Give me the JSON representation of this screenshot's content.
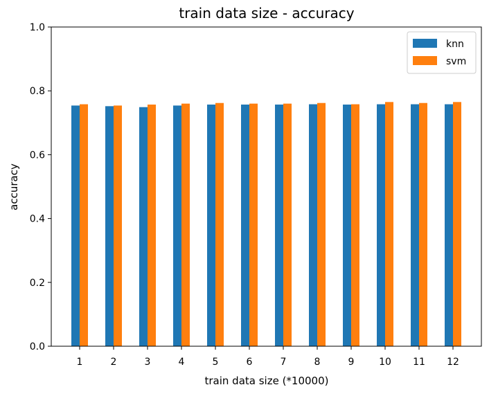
{
  "chart_data": {
    "type": "bar",
    "title": "train data size - accuracy",
    "xlabel": "train data size (*10000)",
    "ylabel": "accuracy",
    "categories": [
      "1",
      "2",
      "3",
      "4",
      "5",
      "6",
      "7",
      "8",
      "9",
      "10",
      "11",
      "12"
    ],
    "ylim": [
      0.0,
      1.0
    ],
    "yticks": [
      "0.0",
      "0.2",
      "0.4",
      "0.6",
      "0.8",
      "1.0"
    ],
    "grid": false,
    "legend_position": "top-right",
    "series": [
      {
        "name": "knn",
        "color": "#1f77b4",
        "values": [
          0.754,
          0.752,
          0.749,
          0.754,
          0.757,
          0.757,
          0.757,
          0.758,
          0.757,
          0.758,
          0.758,
          0.758
        ]
      },
      {
        "name": "svm",
        "color": "#ff7f0e",
        "values": [
          0.758,
          0.754,
          0.757,
          0.76,
          0.762,
          0.76,
          0.76,
          0.762,
          0.758,
          0.765,
          0.762,
          0.765
        ]
      }
    ]
  }
}
